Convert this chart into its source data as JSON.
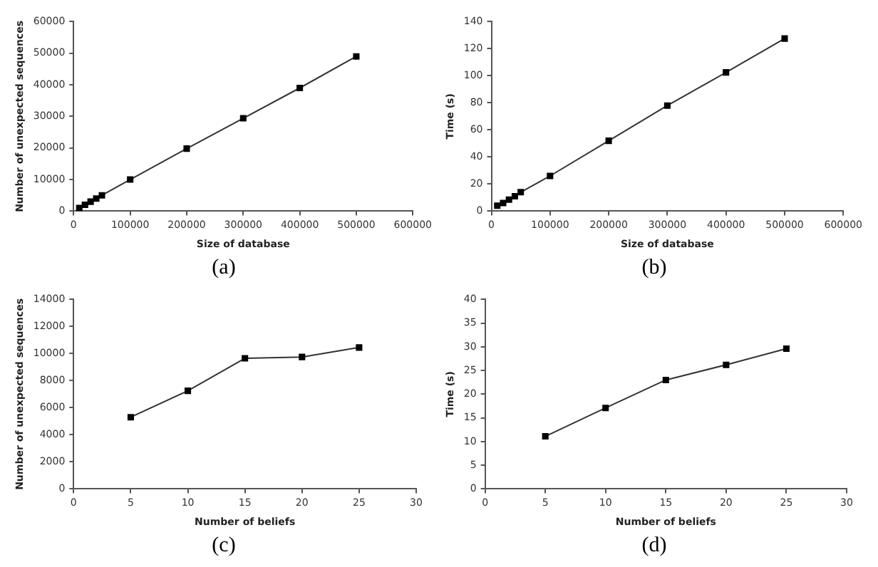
{
  "chart_data": [
    {
      "type": "line",
      "xlabel": "Size of database",
      "ylabel": "Number of unexpected sequences",
      "annotations": [
        "(a)"
      ],
      "x": [
        10000,
        20000,
        30000,
        40000,
        50000,
        100000,
        200000,
        300000,
        400000,
        500000
      ],
      "xlim": [
        0,
        600000
      ],
      "xticks": [
        0,
        100000,
        200000,
        300000,
        400000,
        500000,
        600000
      ],
      "ylim": [
        0,
        60000
      ],
      "yticks": [
        0,
        10000,
        20000,
        30000,
        40000,
        50000,
        60000
      ],
      "marker": "square",
      "series": [
        {
          "color": "#333333",
          "values": [
            1000,
            2000,
            3000,
            4000,
            5000,
            10000,
            19800,
            29400,
            39000,
            49000
          ]
        }
      ]
    },
    {
      "type": "line",
      "xlabel": "Size of database",
      "ylabel": "Time (s)",
      "annotations": [
        "(b)"
      ],
      "x": [
        10000,
        20000,
        30000,
        40000,
        50000,
        100000,
        200000,
        300000,
        400000,
        500000
      ],
      "xlim": [
        0,
        600000
      ],
      "xticks": [
        0,
        100000,
        200000,
        300000,
        400000,
        500000,
        600000
      ],
      "ylim": [
        0,
        140
      ],
      "yticks": [
        0,
        20,
        40,
        60,
        80,
        100,
        120,
        140
      ],
      "marker": "square",
      "series": [
        {
          "color": "#333333",
          "values": [
            4,
            6,
            8.5,
            11,
            14,
            26,
            52,
            78,
            102.5,
            127.5
          ]
        }
      ]
    },
    {
      "type": "line",
      "xlabel": "Number of beliefs",
      "ylabel": "Number of unexpected sequences",
      "annotations": [
        "(c)"
      ],
      "x": [
        5,
        10,
        15,
        20,
        25
      ],
      "xlim": [
        0,
        30
      ],
      "xticks": [
        0,
        5,
        10,
        15,
        20,
        25,
        30
      ],
      "ylim": [
        0,
        14000
      ],
      "yticks": [
        0,
        2000,
        4000,
        6000,
        8000,
        10000,
        12000,
        14000
      ],
      "marker": "square",
      "series": [
        {
          "color": "#333333",
          "values": [
            5300,
            7250,
            9650,
            9750,
            10450
          ]
        }
      ]
    },
    {
      "type": "line",
      "xlabel": "Number of beliefs",
      "ylabel": "Time (s)",
      "annotations": [
        "(d)"
      ],
      "x": [
        5,
        10,
        15,
        20,
        25
      ],
      "xlim": [
        0,
        30
      ],
      "xticks": [
        0,
        5,
        10,
        15,
        20,
        25,
        30
      ],
      "ylim": [
        0,
        40
      ],
      "yticks": [
        0,
        5,
        10,
        15,
        20,
        25,
        30,
        35,
        40
      ],
      "marker": "square",
      "series": [
        {
          "color": "#333333",
          "values": [
            11.1,
            17.1,
            23,
            26.2,
            29.6
          ]
        }
      ]
    }
  ]
}
